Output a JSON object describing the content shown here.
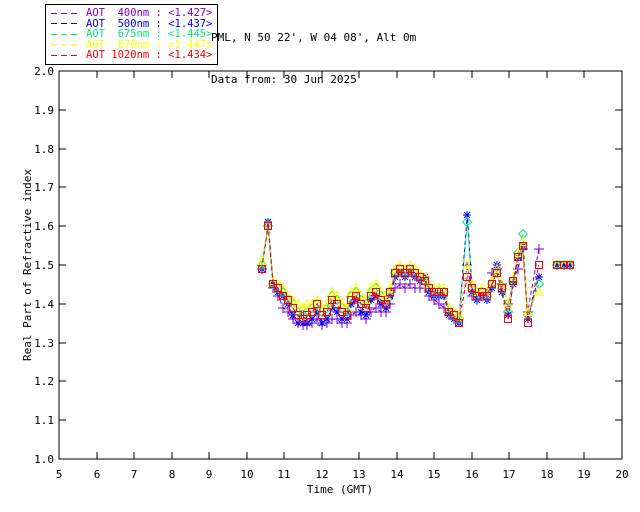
{
  "header": {
    "location": "PML, N 50 22', W 04 08', Alt 0m",
    "data_from": "Data from: 30 Jun 2025"
  },
  "legend": {
    "position": "top-left",
    "line_style": "dashed"
  },
  "chart_data": {
    "type": "line",
    "title": "",
    "xlabel": "Time (GMT)",
    "ylabel": "Real Part of Refractive index",
    "xlim": [
      5,
      20
    ],
    "ylim": [
      1.0,
      2.0
    ],
    "grid": false,
    "background": "#ffffff",
    "axis_color": "#000000",
    "xticks": [
      5,
      6,
      7,
      8,
      9,
      10,
      11,
      12,
      13,
      14,
      15,
      16,
      17,
      18,
      19,
      20
    ],
    "xtick_labels": [
      "5",
      "6",
      "7",
      "8",
      "9",
      "10",
      "11",
      "12",
      "13",
      "14",
      "15",
      "16",
      "17",
      "18",
      "19",
      "20"
    ],
    "yticks": [
      1.0,
      1.1,
      1.2,
      1.3,
      1.4,
      1.5,
      1.6,
      1.7,
      1.8,
      1.9,
      2.0
    ],
    "ytick_labels": [
      "1.0",
      "1.1",
      "1.2",
      "1.3",
      "1.4",
      "1.5",
      "1.6",
      "1.7",
      "1.8",
      "1.9",
      "2.0"
    ],
    "gap_threshold_hours": 0.4,
    "x": [
      10.4,
      10.57,
      10.71,
      10.84,
      10.97,
      11.1,
      11.23,
      11.36,
      11.49,
      11.62,
      11.75,
      11.88,
      12.01,
      12.14,
      12.27,
      12.4,
      12.53,
      12.66,
      12.79,
      12.92,
      13.05,
      13.18,
      13.31,
      13.44,
      13.57,
      13.7,
      13.83,
      13.96,
      14.09,
      14.22,
      14.35,
      14.48,
      14.61,
      14.74,
      14.87,
      15.0,
      15.13,
      15.26,
      15.39,
      15.52,
      15.65,
      15.88,
      16.01,
      16.14,
      16.27,
      16.4,
      16.53,
      16.66,
      16.79,
      16.97,
      17.1,
      17.23,
      17.36,
      17.49,
      17.78,
      18.28,
      18.45,
      18.62
    ],
    "series": [
      {
        "id": "aot-400nm",
        "name": "AOT  400nm",
        "mean_label": "<1.427>",
        "color": "#7D00D2",
        "marker": "plus",
        "linestyle": "dashed",
        "values": [
          1.49,
          1.6,
          1.44,
          1.42,
          1.39,
          1.38,
          1.36,
          1.35,
          1.345,
          1.345,
          1.35,
          1.36,
          1.345,
          1.35,
          1.36,
          1.36,
          1.35,
          1.35,
          1.37,
          1.38,
          1.37,
          1.36,
          1.38,
          1.39,
          1.38,
          1.38,
          1.4,
          1.44,
          1.45,
          1.44,
          1.45,
          1.44,
          1.44,
          1.44,
          1.42,
          1.41,
          1.4,
          1.39,
          1.37,
          1.36,
          1.36,
          1.5,
          1.42,
          1.41,
          1.42,
          1.43,
          1.48,
          1.49,
          1.45,
          1.4,
          1.46,
          1.49,
          1.54,
          1.38,
          1.54,
          1.5,
          1.5,
          1.5
        ]
      },
      {
        "id": "aot-500nm",
        "name": "AOT  500nm",
        "mean_label": "<1.437>",
        "color": "#0000FF",
        "marker": "asterisk",
        "linestyle": "dashed",
        "values": [
          1.49,
          1.61,
          1.45,
          1.43,
          1.42,
          1.4,
          1.37,
          1.35,
          1.35,
          1.35,
          1.36,
          1.38,
          1.35,
          1.36,
          1.39,
          1.38,
          1.36,
          1.36,
          1.4,
          1.41,
          1.38,
          1.37,
          1.41,
          1.42,
          1.4,
          1.39,
          1.42,
          1.47,
          1.48,
          1.47,
          1.48,
          1.47,
          1.46,
          1.47,
          1.43,
          1.42,
          1.42,
          1.42,
          1.37,
          1.36,
          1.35,
          1.63,
          1.43,
          1.41,
          1.42,
          1.41,
          1.44,
          1.5,
          1.43,
          1.37,
          1.45,
          1.52,
          1.55,
          1.36,
          1.47,
          1.5,
          1.5,
          1.5
        ]
      },
      {
        "id": "aot-675nm",
        "name": "AOT  675nm",
        "mean_label": "<1.445>",
        "color": "#00E87C",
        "marker": "diamond",
        "linestyle": "dashed",
        "values": [
          1.5,
          1.6,
          1.45,
          1.44,
          1.43,
          1.41,
          1.4,
          1.38,
          1.37,
          1.38,
          1.39,
          1.4,
          1.38,
          1.39,
          1.42,
          1.41,
          1.39,
          1.38,
          1.42,
          1.43,
          1.41,
          1.4,
          1.43,
          1.44,
          1.42,
          1.41,
          1.43,
          1.48,
          1.49,
          1.48,
          1.49,
          1.48,
          1.47,
          1.46,
          1.44,
          1.43,
          1.43,
          1.43,
          1.38,
          1.37,
          1.36,
          1.61,
          1.44,
          1.42,
          1.43,
          1.42,
          1.45,
          1.48,
          1.44,
          1.38,
          1.46,
          1.53,
          1.58,
          1.37,
          1.45,
          1.5,
          1.5,
          1.5
        ]
      },
      {
        "id": "aot-870nm",
        "name": "AOT  870nm",
        "mean_label": "<1.447>",
        "color": "#FFFF00",
        "marker": "triangle",
        "linestyle": "dashed",
        "values": [
          1.51,
          1.6,
          1.46,
          1.45,
          1.44,
          1.42,
          1.41,
          1.4,
          1.39,
          1.4,
          1.4,
          1.41,
          1.39,
          1.4,
          1.43,
          1.42,
          1.4,
          1.39,
          1.43,
          1.44,
          1.42,
          1.41,
          1.44,
          1.45,
          1.43,
          1.42,
          1.44,
          1.49,
          1.5,
          1.49,
          1.5,
          1.49,
          1.48,
          1.47,
          1.45,
          1.44,
          1.44,
          1.44,
          1.39,
          1.38,
          1.37,
          1.5,
          1.45,
          1.43,
          1.44,
          1.43,
          1.46,
          1.49,
          1.45,
          1.4,
          1.47,
          1.53,
          1.56,
          1.38,
          1.43,
          1.5,
          1.5,
          1.5
        ]
      },
      {
        "id": "aot-1020nm",
        "name": "AOT 1020nm",
        "mean_label": "<1.434>",
        "color": "#FF0000",
        "marker": "square",
        "linestyle": "dashed",
        "values": [
          1.49,
          1.6,
          1.45,
          1.44,
          1.42,
          1.41,
          1.39,
          1.37,
          1.36,
          1.37,
          1.38,
          1.4,
          1.37,
          1.38,
          1.41,
          1.4,
          1.38,
          1.37,
          1.41,
          1.42,
          1.4,
          1.39,
          1.42,
          1.43,
          1.41,
          1.4,
          1.43,
          1.48,
          1.49,
          1.48,
          1.49,
          1.48,
          1.47,
          1.46,
          1.44,
          1.43,
          1.43,
          1.43,
          1.38,
          1.37,
          1.35,
          1.47,
          1.44,
          1.42,
          1.43,
          1.42,
          1.45,
          1.48,
          1.44,
          1.36,
          1.46,
          1.52,
          1.55,
          1.35,
          1.5,
          1.5,
          1.5,
          1.5
        ]
      }
    ]
  }
}
